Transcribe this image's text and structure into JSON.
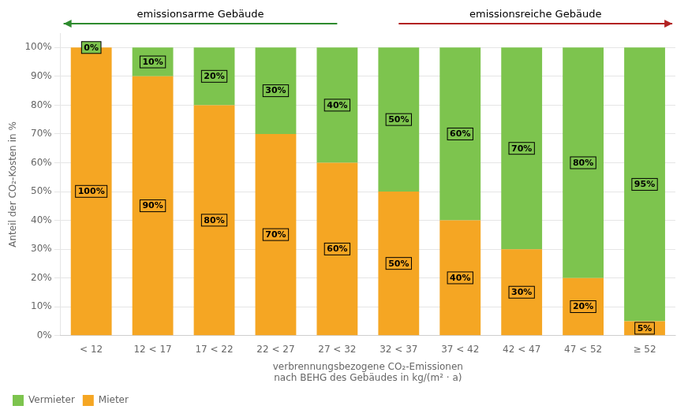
{
  "chart_data": {
    "type": "bar",
    "stacked": true,
    "categories": [
      "< 12",
      "12 < 17",
      "17 < 22",
      "22 < 27",
      "27 < 32",
      "32 < 37",
      "37 < 42",
      "42 < 47",
      "47 < 52",
      "≥ 52"
    ],
    "series": [
      {
        "name": "Mieter",
        "color": "#F5A623",
        "values": [
          100,
          90,
          80,
          70,
          60,
          50,
          40,
          30,
          20,
          5
        ],
        "value_labels": [
          "100%",
          "90%",
          "80%",
          "70%",
          "60%",
          "50%",
          "40%",
          "30%",
          "20%",
          "5%"
        ]
      },
      {
        "name": "Vermieter",
        "color": "#7DC44E",
        "values": [
          0,
          10,
          20,
          30,
          40,
          50,
          60,
          70,
          80,
          95
        ],
        "value_labels": [
          "0%",
          "10%",
          "20%",
          "30%",
          "40%",
          "50%",
          "60%",
          "70%",
          "80%",
          "95%"
        ]
      }
    ],
    "xlabel": "verbrennungsbezogene CO₂-Emissionen\nnach BEHG des Gebäudes in kg/(m² · a)",
    "ylabel": "Anteil der CO₂-Kosten in %",
    "ylim": [
      0,
      105
    ],
    "yticks": [
      {
        "value": 0,
        "label": "0%"
      },
      {
        "value": 10,
        "label": "10%"
      },
      {
        "value": 20,
        "label": "20%"
      },
      {
        "value": 30,
        "label": "30%"
      },
      {
        "value": 40,
        "label": "40%"
      },
      {
        "value": 50,
        "label": "50%"
      },
      {
        "value": 60,
        "label": "60%"
      },
      {
        "value": 70,
        "label": "70%"
      },
      {
        "value": 80,
        "label": "80%"
      },
      {
        "value": 90,
        "label": "90%"
      },
      {
        "value": 100,
        "label": "100%"
      }
    ],
    "grid": true,
    "legend": "lower left",
    "data_labels": true,
    "annotations": [
      {
        "text": "emissionsarme Gebäude",
        "color": "#2E8B2E"
      },
      {
        "text": "emissionsreiche Gebäude",
        "color": "#B22222"
      }
    ]
  }
}
